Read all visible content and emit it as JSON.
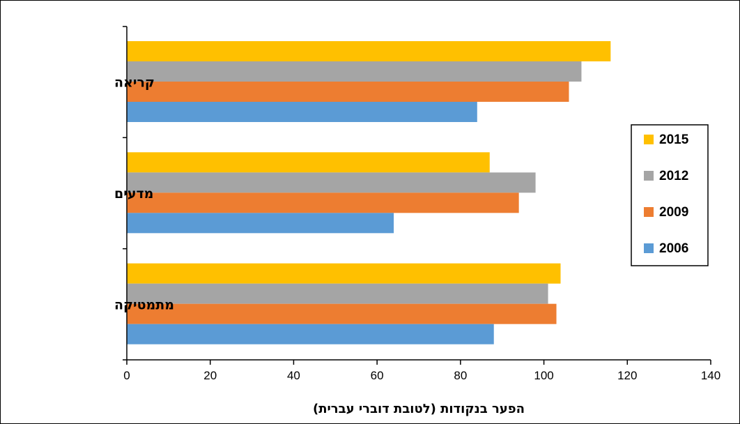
{
  "chart_data": {
    "type": "bar",
    "orientation": "horizontal",
    "categories": [
      "קריאה",
      "מדעים",
      "מתמטיקה"
    ],
    "series": [
      {
        "name": "2015",
        "color": "#FFC000",
        "values": [
          116,
          87,
          104
        ]
      },
      {
        "name": "2012",
        "color": "#A5A5A5",
        "values": [
          109,
          98,
          101
        ]
      },
      {
        "name": "2009",
        "color": "#ED7D31",
        "values": [
          106,
          94,
          103
        ]
      },
      {
        "name": "2006",
        "color": "#5B9BD5",
        "values": [
          84,
          64,
          88
        ]
      }
    ],
    "xlabel": "הפער בנקודות (לטובת דוברי עברית)",
    "xlim": [
      0,
      140
    ],
    "xticks": [
      0,
      20,
      40,
      60,
      80,
      100,
      120,
      140
    ],
    "grid": false,
    "legend_position": "right"
  }
}
